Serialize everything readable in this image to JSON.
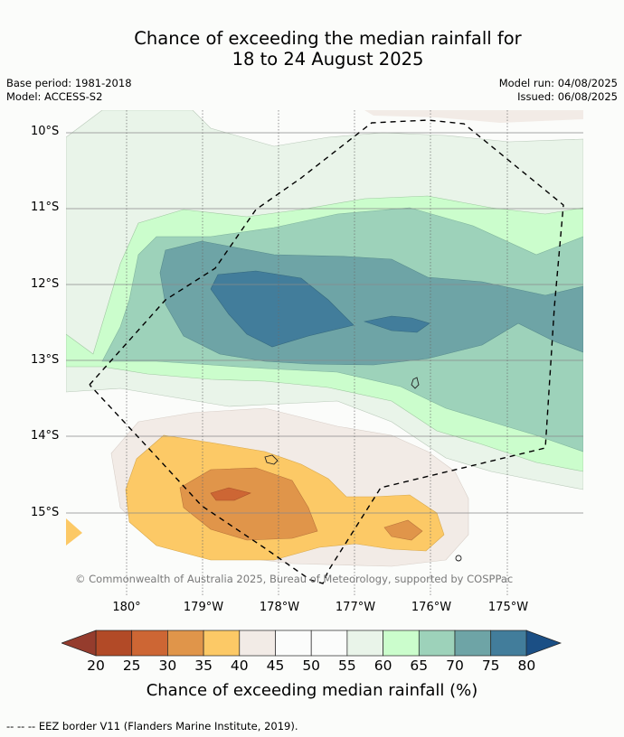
{
  "title": {
    "line1": "Chance of exceeding the median rainfall for",
    "line2": "18 to 24 August 2025"
  },
  "meta": {
    "base_period": "Base period: 1981-2018",
    "model": "Model: ACCESS-S2",
    "model_run": "Model run: 04/08/2025",
    "issued": "Issued: 06/08/2025"
  },
  "axes": {
    "lat_labels": [
      "10°S",
      "11°S",
      "12°S",
      "13°S",
      "14°S",
      "15°S"
    ],
    "lon_labels": [
      "180°",
      "179°W",
      "178°W",
      "177°W",
      "176°W",
      "175°W"
    ]
  },
  "credit": "© Commonwealth of Australia 2025, Bureau of Meteorology, supported by COSPPac",
  "colorbar": {
    "ticks": [
      "20",
      "25",
      "30",
      "35",
      "40",
      "45",
      "50",
      "55",
      "60",
      "65",
      "70",
      "75",
      "80"
    ],
    "label": "Chance of exceeding median rainfall (%)",
    "colors": [
      "#b24a27",
      "#cd6634",
      "#e0954a",
      "#fcc966",
      "#f2ebe6",
      "#fbfcfb",
      "#fbfcfb",
      "#e9f4e9",
      "#cbfdcc",
      "#9dd2ba",
      "#6ea4a6",
      "#427d9b"
    ],
    "under_color": "#953c2d",
    "over_color": "#1b4f85"
  },
  "footer": "--  --  -- EEZ border V11 (Flanders Marine Institute, 2019)."
}
